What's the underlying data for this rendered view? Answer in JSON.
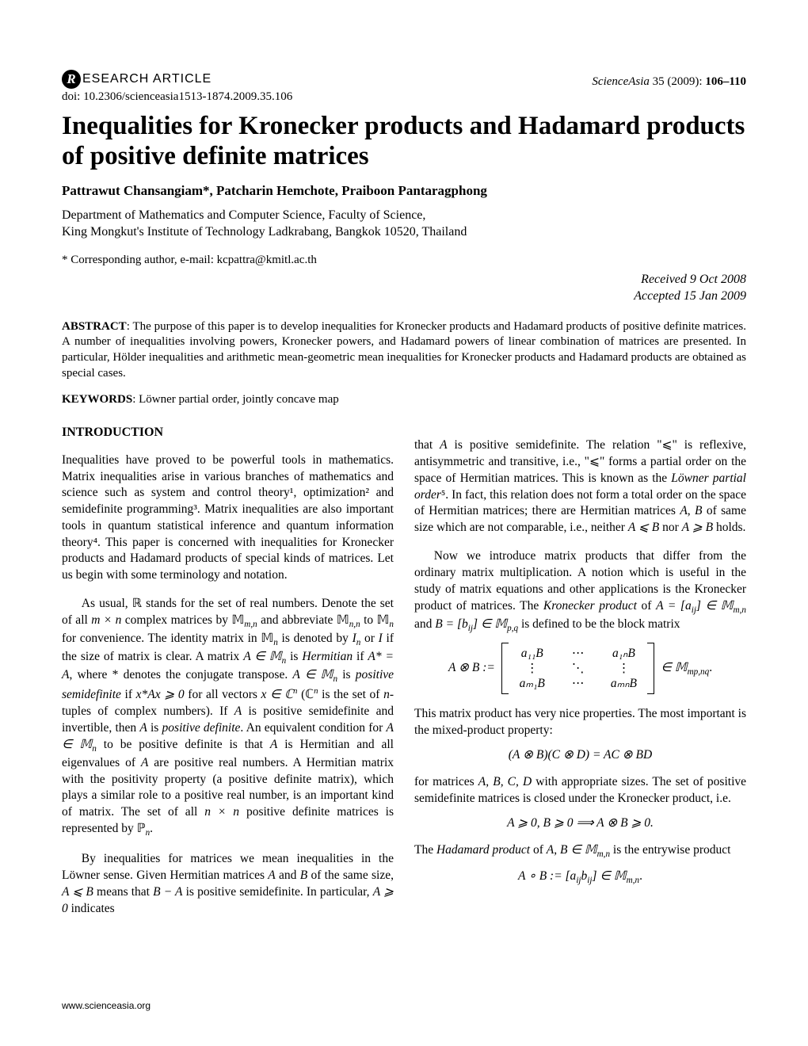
{
  "header": {
    "badge_letter": "R",
    "badge_label": "ESEARCH  ARTICLE",
    "journal_italic": "ScienceAsia",
    "volume": " 35 (2009): ",
    "pages": "106–110",
    "doi": "doi: 10.2306/scienceasia1513-1874.2009.35.106"
  },
  "title": "Inequalities for Kronecker products and Hadamard products of positive definite matrices",
  "authors": "Pattrawut Chansangiam*, Patcharin Hemchote, Praiboon Pantaragphong",
  "affiliation_line1": "Department of Mathematics and Computer Science, Faculty of Science,",
  "affiliation_line2": "King Mongkut's Institute of Technology Ladkrabang, Bangkok 10520, Thailand",
  "corresponding": "* Corresponding author, e-mail: kcpattra@kmitl.ac.th",
  "dates": {
    "received": "Received  9 Oct 2008",
    "accepted": "Accepted  15 Jan 2009"
  },
  "abstract_label": "ABSTRACT",
  "abstract_text": ": The purpose of this paper is to develop inequalities for Kronecker products and Hadamard products of positive definite matrices. A number of inequalities involving powers, Kronecker powers, and Hadamard powers of linear combination of matrices are presented. In particular, Hölder inequalities and arithmetic mean-geometric mean inequalities for Kronecker products and Hadamard products are obtained as special cases.",
  "keywords_label": "KEYWORDS",
  "keywords_text": ": Löwner partial order, jointly concave map",
  "section_intro": "INTRODUCTION",
  "left": {
    "p1": "Inequalities have proved to be powerful tools in mathematics. Matrix inequalities arise in various branches of mathematics and science such as system and control theory¹, optimization² and semidefinite programming³. Matrix inequalities are also important tools in quantum statistical inference and quantum information theory⁴. This paper is concerned with inequalities for Kronecker products and Hadamard products of special kinds of matrices. Let us begin with some terminology and notation.",
    "p2a": "As usual, ",
    "p2_Rset": "ℝ",
    "p2b": " stands for the set of real numbers. Denote the set of all ",
    "p2_mxn": "m × n",
    "p2c": " complex matrices by ",
    "p2_Mmn": "𝕄",
    "p2_mn_sub": "m,n",
    "p2d": " and abbreviate ",
    "p2_Mnn": "𝕄",
    "p2_nn_sub": "n,n",
    "p2e": " to ",
    "p2_Mn": "𝕄",
    "p2_n_sub": "n",
    "p2f": " for convenience. The identity matrix in ",
    "p2g": " is denoted by ",
    "p2_In": "I",
    "p2_In_sub": "n",
    "p2h": " or ",
    "p2_I": "I",
    "p2i": " if the size of matrix is clear. A matrix ",
    "p2_AinMn": "A ∈ 𝕄",
    "p2j": " is ",
    "p2_herm": "Hermitian",
    "p2k": " if ",
    "p2_Astar": "A* = A",
    "p2l": ", where * denotes the conjugate transpose. ",
    "p2_Ain": "A ∈ 𝕄",
    "p2m": " is ",
    "p2_psd": "positive semidefinite",
    "p2n": " if ",
    "p2_xAx": "x*Ax ⩾ 0",
    "p2o": " for all vectors ",
    "p2_xinCn": "x ∈ ℂ",
    "p2o2": " (",
    "p2_Cn": "ℂ",
    "p2p": " is the set of ",
    "p2_ntup": "n",
    "p2p2": "-tuples of complex numbers). If ",
    "p2_A": "A",
    "p2q": " is positive semidefinite and invertible, then ",
    "p2r": " is ",
    "p2_pd": "positive definite",
    "p2s": ". An equivalent condition for ",
    "p2_AinMn2": "A ∈ 𝕄",
    "p2t": " to be positive definite is that ",
    "p2u": " is Hermitian and all eigenvalues of ",
    "p2v": " are positive real numbers. A Hermitian matrix with the positivity property (a positive definite matrix), which plays a similar role to a positive real number, is an important kind of matrix. The set of all ",
    "p2_nxn": "n × n",
    "p2w": " positive definite matrices is represented by ",
    "p2_Pn": "ℙ",
    "p2x": ".",
    "p3a": "By inequalities for matrices we mean inequalities in the Löwner sense. Given Hermitian matrices ",
    "p3_A": "A",
    "p3b": " and ",
    "p3_B": "B",
    "p3c": " of the same size, ",
    "p3_AleB": "A ⩽ B",
    "p3d": " means that ",
    "p3_BmA": "B − A",
    "p3e": " is positive semidefinite. In particular, ",
    "p3_Age0": "A ⩾ 0",
    "p3f": " indicates"
  },
  "right": {
    "p1a": "that ",
    "p1_A": "A",
    "p1b": " is positive semidefinite. The relation \"⩽\" is reflexive, antisymmetric and transitive, i.e., \"⩽\" forms a partial order on the space of Hermitian matrices. This is known as the ",
    "p1_lpo": "Löwner partial order",
    "p1_ref5": "⁵",
    "p1c": ". In fact, this relation does not form a total order on the space of Hermitian matrices; there are Hermitian matrices ",
    "p1d": ", ",
    "p1_B": "B",
    "p1e": " of same size which are not comparable, i.e., neither ",
    "p1_AleB": "A ⩽ B",
    "p1f": " nor ",
    "p1_AgeB": "A ⩾ B",
    "p1g": " holds.",
    "p2a": "Now we introduce matrix products that differ from the ordinary matrix multiplication. A notion which is useful in the study of matrix equations and other applications is the Kronecker product of matrices. The ",
    "p2_kp": "Kronecker product",
    "p2b": " of ",
    "p2_Aeq": "A = [a",
    "p2_ij": "ij",
    "p2_close": "] ∈ 𝕄",
    "p2_mn": "m,n",
    "p2c": " and ",
    "p2_Beq": "B = [b",
    "p2_close2": "] ∈ 𝕄",
    "p2_pq": "p,q",
    "p2d": " is defined to be the block matrix",
    "eq_kron_lhs": "A ⊗ B :=",
    "eq_kron_a11": "a₁₁B",
    "eq_kron_dots_h": "⋯",
    "eq_kron_a1n": "a₁ₙB",
    "eq_kron_vdots": "⋮",
    "eq_kron_ddots": "⋱",
    "eq_kron_am1": "aₘ₁B",
    "eq_kron_amn": "aₘₙB",
    "eq_kron_rhs": " ∈ 𝕄",
    "eq_kron_sub": "mp,nq",
    "eq_kron_dot": ".",
    "p3": "This matrix product has very nice properties. The most important is the mixed-product property:",
    "eq_mixed": "(A ⊗ B)(C ⊗ D) = AC ⊗ BD",
    "p4a": "for matrices ",
    "p4_ABCD": "A, B, C, D",
    "p4b": " with appropriate sizes. The set of positive semidefinite matrices is closed under the Kronecker product, i.e.",
    "eq_psd": "A ⩾ 0, B ⩾ 0    ⟹    A ⊗ B ⩾ 0.",
    "p5a": "The ",
    "p5_hp": "Hadamard product",
    "p5b": " of ",
    "p5_ABin": "A, B ∈ 𝕄",
    "p5_mn": "m,n",
    "p5c": " is the entrywise product",
    "eq_had": "A ∘ B := [a",
    "eq_had_ij": "ij",
    "eq_had_b": "b",
    "eq_had2": "] ∈ 𝕄",
    "eq_had_sub": "m,n",
    "eq_had_dot": "."
  },
  "footer": "www.scienceasia.org"
}
